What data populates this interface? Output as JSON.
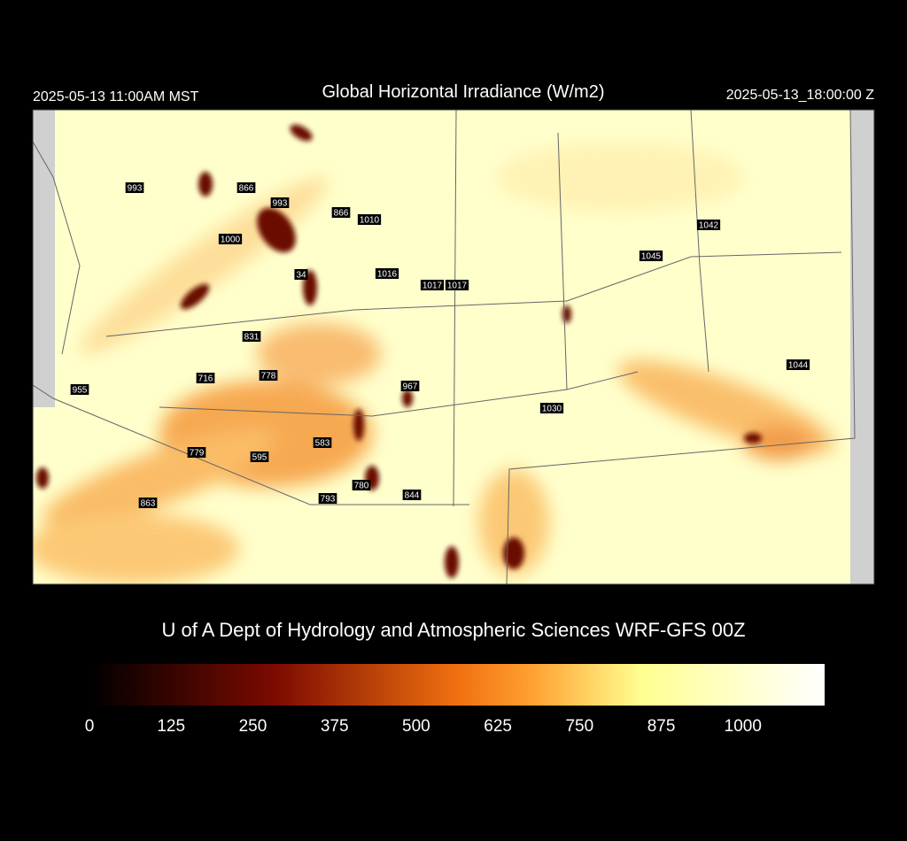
{
  "header": {
    "left": "2025-05-13 11:00AM MST",
    "title": "Global Horizontal Irradiance (W/m2)",
    "right": "2025-05-13_18:00:00 Z"
  },
  "stations": [
    993,
    866,
    993,
    866,
    1010,
    1000,
    34,
    1016,
    1017,
    1017,
    1042,
    1045,
    831,
    778,
    716,
    955,
    967,
    1030,
    1044,
    583,
    779,
    595,
    780,
    793,
    844,
    863
  ],
  "credit": "U of A Dept of Hydrology and Atmospheric Sciences WRF-GFS 00Z",
  "colorbar": {
    "range": [
      0,
      1125
    ],
    "ticks": [
      0,
      125,
      250,
      375,
      500,
      625,
      750,
      875,
      1000
    ]
  }
}
